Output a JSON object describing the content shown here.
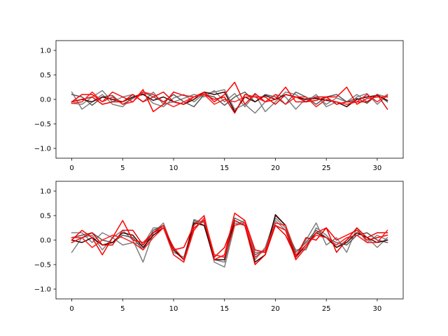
{
  "chart_data": [
    {
      "type": "line",
      "x": [
        0,
        1,
        2,
        3,
        4,
        5,
        6,
        7,
        8,
        9,
        10,
        11,
        12,
        13,
        14,
        15,
        16,
        17,
        18,
        19,
        20,
        21,
        22,
        23,
        24,
        25,
        26,
        27,
        28,
        29,
        30,
        31
      ],
      "xlim": [
        -1.55,
        32.55
      ],
      "ylim": [
        -1.2,
        1.2
      ],
      "xticks": [
        0,
        5,
        10,
        15,
        20,
        25,
        30
      ],
      "yticks": [
        -1.0,
        -0.5,
        0.0,
        0.5,
        1.0
      ],
      "xtick_labels": [
        "0",
        "5",
        "10",
        "15",
        "20",
        "25",
        "30"
      ],
      "ytick_labels": [
        "−1.0",
        "−0.5",
        "0.0",
        "0.5",
        "1.0"
      ],
      "grid": false,
      "series": [
        {
          "color": "#808080",
          "values": [
            0.15,
            -0.2,
            -0.05,
            0.1,
            -0.1,
            -0.15,
            0.05,
            0.12,
            -0.08,
            -0.15,
            0.03,
            0.1,
            -0.05,
            0.12,
            0.15,
            0.2,
            -0.2,
            -0.1,
            -0.28,
            -0.05,
            0.1,
            0.05,
            -0.2,
            0.02,
            0.05,
            -0.1,
            0.03,
            -0.05,
            0.1,
            -0.05,
            0.1,
            0.05
          ]
        },
        {
          "color": "#808080",
          "values": [
            -0.08,
            -0.1,
            0.05,
            0.18,
            -0.05,
            0.05,
            0.1,
            -0.05,
            0.15,
            -0.1,
            -0.05,
            0.02,
            0.1,
            0.05,
            0.18,
            -0.05,
            0.12,
            -0.15,
            0.1,
            -0.25,
            -0.05,
            0.15,
            0.1,
            -0.05,
            0.1,
            -0.15,
            -0.05,
            -0.15,
            0.05,
            0.12,
            -0.1,
            0.08
          ]
        },
        {
          "color": "#595959",
          "values": [
            0.1,
            0.05,
            -0.12,
            0.05,
            0.08,
            -0.1,
            0.02,
            0.15,
            0.05,
            -0.05,
            0.1,
            -0.05,
            -0.15,
            0.1,
            0.05,
            -0.12,
            0.05,
            0.15,
            -0.05,
            0.1,
            0.05,
            -0.1,
            0.15,
            0.05,
            -0.1,
            0.05,
            0.1,
            -0.05,
            0.02,
            -0.08,
            0.1,
            -0.05
          ]
        },
        {
          "color": "#3d0000",
          "values": [
            -0.05,
            0.0,
            -0.05,
            0.05,
            0.0,
            -0.05,
            0.05,
            0.1,
            -0.02,
            0.05,
            -0.05,
            -0.1,
            0.0,
            0.15,
            0.1,
            0.15,
            -0.25,
            0.05,
            -0.05,
            0.08,
            0.0,
            0.1,
            0.05,
            0.0,
            0.02,
            -0.02,
            -0.05,
            -0.15,
            0.0,
            0.05,
            0.08,
            -0.02
          ]
        },
        {
          "color": "#ff0000",
          "values": [
            -0.05,
            0.1,
            0.1,
            -0.05,
            0.15,
            0.05,
            -0.05,
            0.2,
            -0.25,
            -0.1,
            0.15,
            0.08,
            0.05,
            0.15,
            -0.05,
            0.1,
            0.35,
            -0.1,
            0.12,
            -0.05,
            0.0,
            0.25,
            -0.05,
            -0.05,
            -0.02,
            0.05,
            0.05,
            0.25,
            -0.1,
            0.02,
            0.05,
            0.05
          ]
        },
        {
          "color": "#e60000",
          "values": [
            -0.05,
            0.0,
            0.05,
            -0.1,
            -0.05,
            -0.05,
            0.1,
            -0.05,
            0.05,
            0.15,
            -0.05,
            -0.1,
            0.05,
            0.1,
            0.0,
            0.05,
            -0.28,
            0.1,
            0.05,
            0.05,
            -0.1,
            0.1,
            0.05,
            -0.05,
            0.05,
            0.05,
            -0.1,
            -0.05,
            -0.05,
            -0.05,
            0.1,
            -0.2
          ]
        },
        {
          "color": "#ff1a1a",
          "values": [
            -0.08,
            -0.05,
            0.15,
            -0.05,
            0.05,
            -0.1,
            -0.05,
            0.15,
            0.1,
            -0.05,
            -0.15,
            -0.05,
            0.05,
            0.1,
            -0.1,
            0.0,
            -0.05,
            0.05,
            0.05,
            -0.05,
            0.1,
            -0.1,
            0.05,
            0.05,
            -0.15,
            0.0,
            -0.05,
            -0.1,
            -0.05,
            0.1,
            -0.05,
            0.1
          ]
        }
      ]
    },
    {
      "type": "line",
      "x": [
        0,
        1,
        2,
        3,
        4,
        5,
        6,
        7,
        8,
        9,
        10,
        11,
        12,
        13,
        14,
        15,
        16,
        17,
        18,
        19,
        20,
        21,
        22,
        23,
        24,
        25,
        26,
        27,
        28,
        29,
        30,
        31
      ],
      "xlim": [
        -1.55,
        32.55
      ],
      "ylim": [
        -1.2,
        1.2
      ],
      "xticks": [
        0,
        5,
        10,
        15,
        20,
        25,
        30
      ],
      "yticks": [
        -1.0,
        -0.5,
        0.0,
        0.5,
        1.0
      ],
      "xtick_labels": [
        "0",
        "5",
        "10",
        "15",
        "20",
        "25",
        "30"
      ],
      "ytick_labels": [
        "−1.0",
        "−0.5",
        "0.0",
        "0.5",
        "1.0"
      ],
      "grid": false,
      "series": [
        {
          "color": "#808080",
          "values": [
            -0.25,
            0.05,
            0.1,
            -0.2,
            0.05,
            0.2,
            0.0,
            -0.45,
            0.15,
            0.35,
            -0.2,
            -0.4,
            0.42,
            0.35,
            -0.45,
            -0.55,
            0.3,
            0.4,
            -0.4,
            -0.15,
            0.45,
            0.25,
            -0.35,
            0.0,
            0.35,
            -0.1,
            0.05,
            -0.25,
            0.25,
            -0.05,
            0.1,
            0.0
          ]
        },
        {
          "color": "#808080",
          "values": [
            0.15,
            0.15,
            -0.05,
            0.15,
            0.05,
            -0.1,
            -0.05,
            -0.1,
            0.25,
            0.25,
            -0.25,
            -0.35,
            0.35,
            0.4,
            -0.4,
            -0.45,
            0.35,
            0.3,
            -0.25,
            -0.25,
            0.4,
            0.2,
            -0.2,
            -0.2,
            0.25,
            0.1,
            -0.15,
            0.0,
            0.15,
            0.05,
            -0.15,
            0.05
          ]
        },
        {
          "color": "#595959",
          "values": [
            0.05,
            0.1,
            0.15,
            0.0,
            -0.05,
            0.1,
            0.05,
            -0.2,
            0.2,
            0.3,
            -0.3,
            -0.45,
            0.4,
            0.3,
            -0.3,
            -0.35,
            0.45,
            0.35,
            -0.3,
            -0.2,
            0.5,
            0.3,
            -0.25,
            -0.05,
            0.2,
            0.05,
            -0.05,
            -0.1,
            0.1,
            0.15,
            0.0,
            -0.05
          ]
        },
        {
          "color": "#3d0000",
          "values": [
            0.0,
            -0.05,
            0.05,
            -0.1,
            -0.05,
            0.15,
            0.1,
            -0.15,
            0.1,
            0.25,
            -0.2,
            -0.4,
            0.35,
            0.3,
            -0.4,
            -0.4,
            0.4,
            0.3,
            -0.45,
            -0.3,
            0.52,
            0.3,
            -0.35,
            -0.1,
            0.15,
            0.05,
            -0.15,
            -0.05,
            0.15,
            0.05,
            -0.05,
            0.0
          ]
        },
        {
          "color": "#ff0000",
          "values": [
            0.0,
            0.2,
            0.05,
            -0.3,
            0.05,
            0.4,
            0.0,
            -0.05,
            0.15,
            0.3,
            -0.2,
            -0.15,
            0.3,
            0.5,
            -0.4,
            -0.3,
            0.55,
            0.4,
            -0.2,
            -0.25,
            0.3,
            0.2,
            -0.4,
            -0.15,
            0.15,
            0.25,
            0.0,
            0.1,
            0.2,
            0.0,
            0.05,
            0.1
          ]
        },
        {
          "color": "#e60000",
          "values": [
            -0.05,
            0.05,
            0.15,
            -0.1,
            -0.1,
            0.2,
            0.2,
            -0.1,
            0.15,
            0.25,
            -0.15,
            -0.4,
            0.25,
            0.4,
            -0.35,
            -0.15,
            0.4,
            0.3,
            -0.5,
            -0.3,
            0.3,
            0.1,
            -0.35,
            0.05,
            0.0,
            0.25,
            -0.25,
            0.0,
            0.25,
            0.05,
            0.15,
            0.15
          ]
        },
        {
          "color": "#ff1a1a",
          "values": [
            0.05,
            0.05,
            -0.15,
            0.0,
            0.1,
            0.05,
            -0.05,
            -0.2,
            0.05,
            0.25,
            -0.3,
            -0.45,
            0.2,
            0.45,
            -0.3,
            -0.35,
            0.3,
            0.35,
            -0.35,
            -0.2,
            0.35,
            0.3,
            -0.3,
            -0.1,
            0.1,
            0.05,
            -0.1,
            0.05,
            0.1,
            -0.05,
            -0.05,
            0.2
          ]
        }
      ]
    }
  ]
}
